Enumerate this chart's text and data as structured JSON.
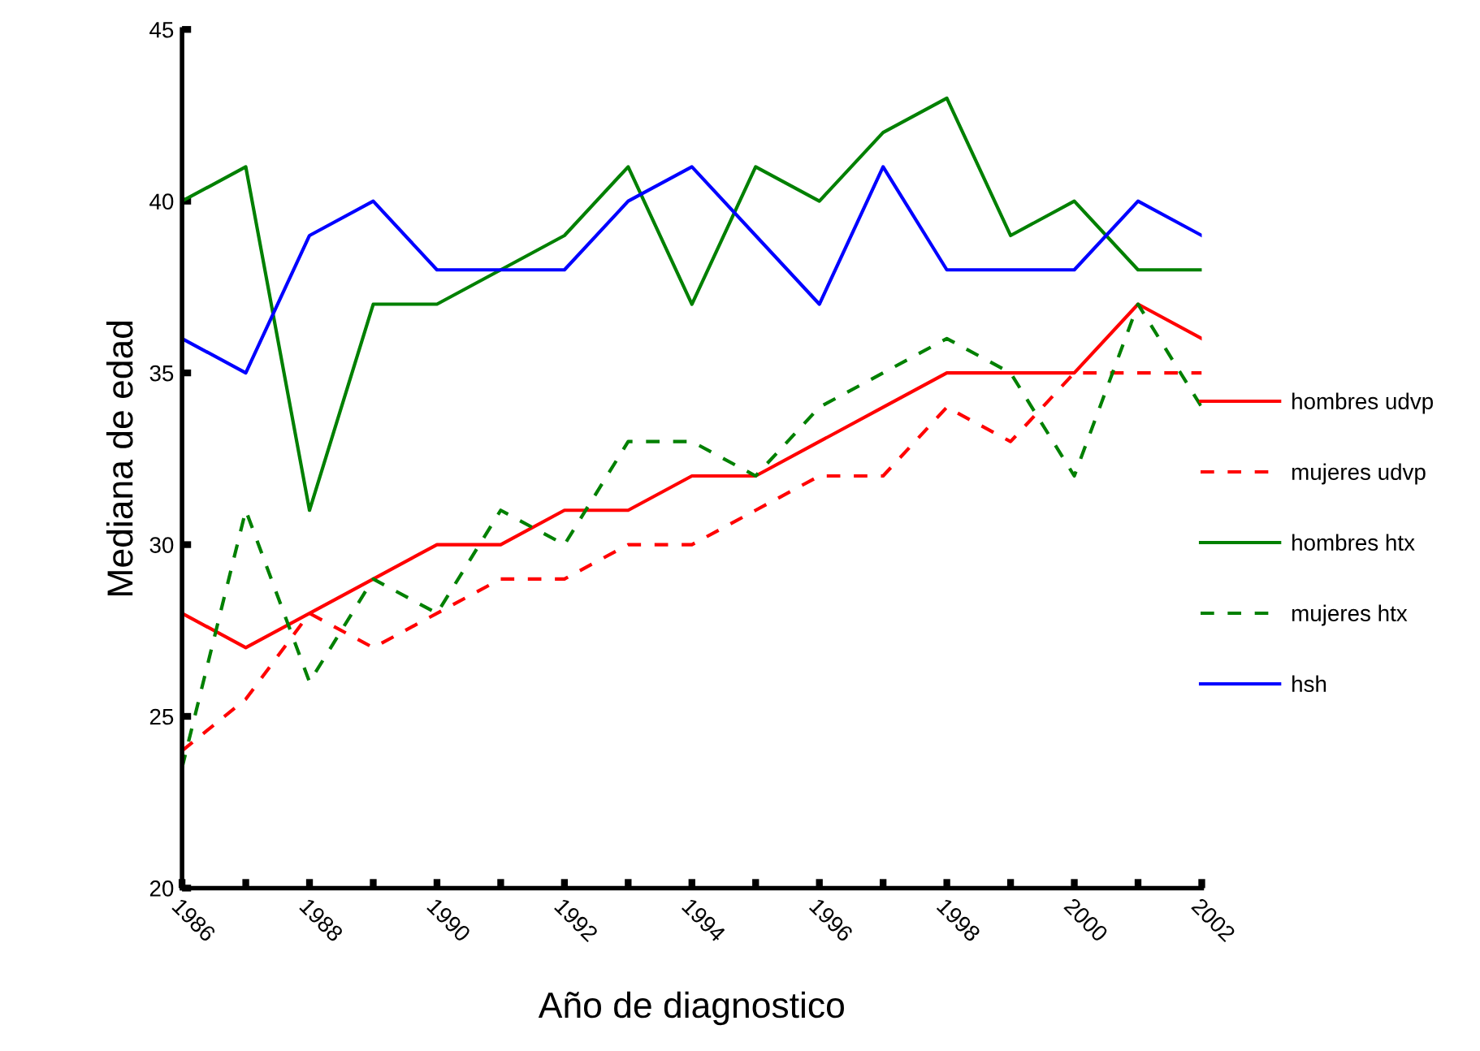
{
  "chart_data": {
    "type": "line",
    "xlabel": "Año de diagnostico",
    "ylabel": "Mediana de edad",
    "x": [
      1986,
      1987,
      1988,
      1989,
      1990,
      1991,
      1992,
      1993,
      1994,
      1995,
      1996,
      1997,
      1998,
      1999,
      2000,
      2001,
      2002
    ],
    "series": [
      {
        "name": "hombres udvp",
        "color": "#ff0000",
        "line_style": "solid",
        "values": [
          28,
          27,
          28,
          29,
          30,
          30,
          31,
          31,
          32,
          32,
          33,
          34,
          35,
          35,
          35,
          37,
          36
        ]
      },
      {
        "name": "mujeres udvp",
        "color": "#ff0000",
        "line_style": "dashed",
        "values": [
          24,
          25.5,
          28,
          27,
          28,
          29,
          29,
          30,
          30,
          31,
          32,
          32,
          34,
          33,
          35,
          35,
          35
        ]
      },
      {
        "name": "hombres htx",
        "color": "#008000",
        "line_style": "solid",
        "values": [
          40,
          41,
          31,
          37,
          37,
          38,
          39,
          41,
          37,
          41,
          40,
          42,
          43,
          39,
          40,
          38,
          38
        ]
      },
      {
        "name": "mujeres htx",
        "color": "#008000",
        "line_style": "dashed",
        "values": [
          23.5,
          31,
          26,
          29,
          28,
          31,
          30,
          33,
          33,
          32,
          34,
          35,
          36,
          35,
          32,
          37,
          34
        ]
      },
      {
        "name": "hsh",
        "color": "#0000ff",
        "line_style": "solid",
        "values": [
          36,
          35,
          39,
          40,
          38,
          38,
          38,
          40,
          41,
          39,
          37,
          41,
          38,
          38,
          38,
          40,
          39
        ]
      }
    ],
    "xlim": [
      1986,
      2002
    ],
    "xticks": [
      1986,
      {
        "value": 1987,
        "label": null
      },
      1988,
      {
        "value": 1989,
        "label": null
      },
      1990,
      {
        "value": 1991,
        "label": null
      },
      1992,
      {
        "value": 1993,
        "label": null
      },
      1994,
      {
        "value": 1995,
        "label": null
      },
      1996,
      {
        "value": 1997,
        "label": null
      },
      1998,
      {
        "value": 1999,
        "label": null
      },
      2000,
      {
        "value": 2001,
        "label": null
      },
      2002
    ],
    "ylim": [
      20,
      45
    ],
    "yticks": [
      20,
      25,
      30,
      35,
      40,
      45
    ],
    "grid": false,
    "legend": "right",
    "marker": "none"
  }
}
